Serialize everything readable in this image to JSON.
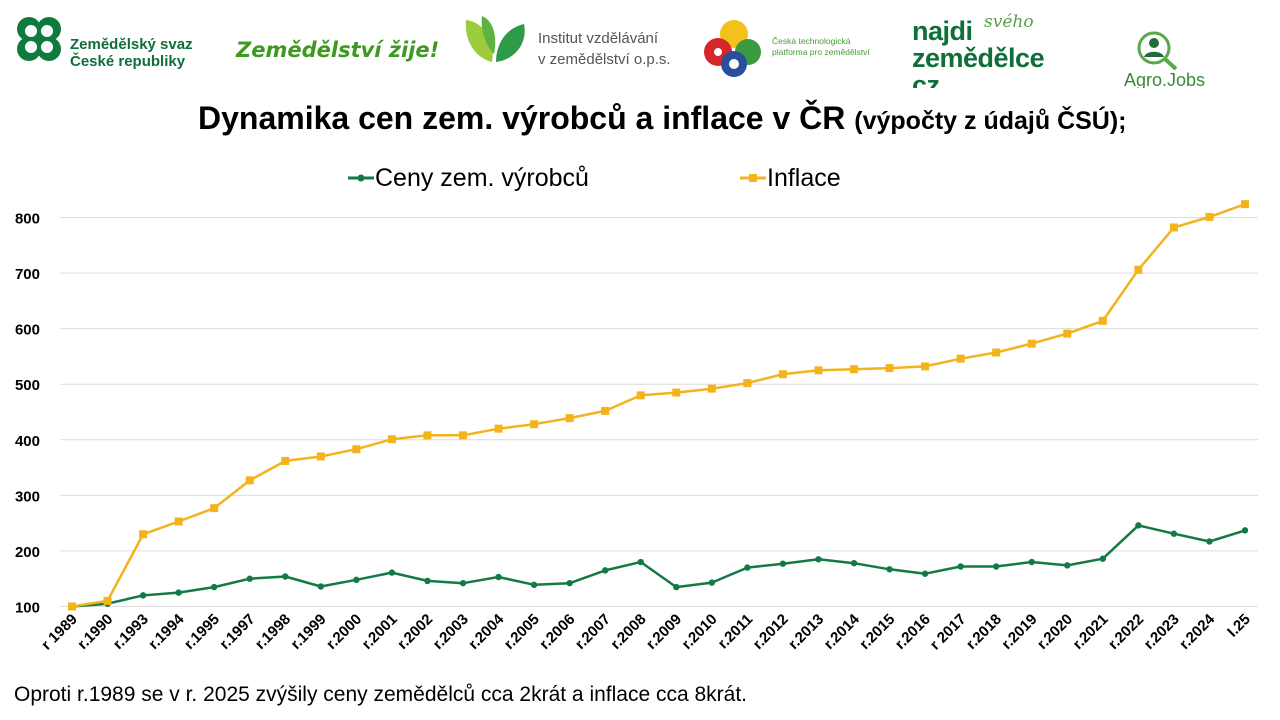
{
  "logos": {
    "zs": {
      "line1": "Zemědělský svaz",
      "line2": "České republiky"
    },
    "zz": "Zemědělství žije!",
    "ivz": {
      "line1": "Institut vzdělávání",
      "line2": "v zemědělství o.p.s."
    },
    "ctp": {
      "line1": "Česká technologická",
      "line2": "platforma pro zemědělství"
    },
    "najdi": {
      "line1": "najdi",
      "script": "svého",
      "line2": "zemědělce",
      "line3": "cz"
    },
    "aj": "Agro.Jobs"
  },
  "header": {
    "title": "Dynamika cen zem. výrobců a inflace v ČR",
    "subtitle": "(výpočty z údajů ČSÚ);"
  },
  "chart_data": {
    "type": "line",
    "categories": [
      "r 1989",
      "r.1990",
      "r.1993",
      "r.1994",
      "r.1995",
      "r.1997",
      "r.1998",
      "r.1999",
      "r.2000",
      "r.2001",
      "r.2002",
      "r.2003",
      "r.2004",
      "r.2005",
      "r.2006",
      "r.2007",
      "r.2008",
      "r.2009",
      "r.2010",
      "r.2011",
      "r.2012",
      "r.2013",
      "r.2014",
      "r.2015",
      "r.2016",
      "r 2017",
      "r.2018",
      "r.2019",
      "r.2020",
      "r.2021",
      "r.2022",
      "r.2023",
      "r.2024",
      "I.25"
    ],
    "series": [
      {
        "name": "Ceny zem. výrobců",
        "color": "#137a46",
        "marker": "circle",
        "values": [
          100,
          105,
          120,
          125,
          135,
          150,
          154,
          136,
          148,
          161,
          146,
          142,
          153,
          139,
          142,
          165,
          180,
          135,
          143,
          170,
          177,
          185,
          178,
          167,
          159,
          172,
          172,
          180,
          174,
          186,
          246,
          231,
          217,
          237
        ]
      },
      {
        "name": "Inflace",
        "color": "#f2b31b",
        "marker": "square",
        "values": [
          100,
          110,
          230,
          253,
          277,
          327,
          362,
          370,
          383,
          401,
          408,
          408,
          420,
          428,
          439,
          452,
          480,
          485,
          492,
          502,
          518,
          525,
          527,
          529,
          532,
          546,
          557,
          573,
          591,
          614,
          706,
          782,
          801,
          824
        ]
      }
    ],
    "yticks": [
      100,
      200,
      300,
      400,
      500,
      600,
      700,
      800
    ],
    "ylim": [
      100,
      830
    ],
    "grid": true,
    "legend_position": "top"
  },
  "footer": {
    "note": "Oproti r.1989 se v r. 2025 zvýšily ceny zemědělců cca 2krát a inflace cca 8krát."
  }
}
